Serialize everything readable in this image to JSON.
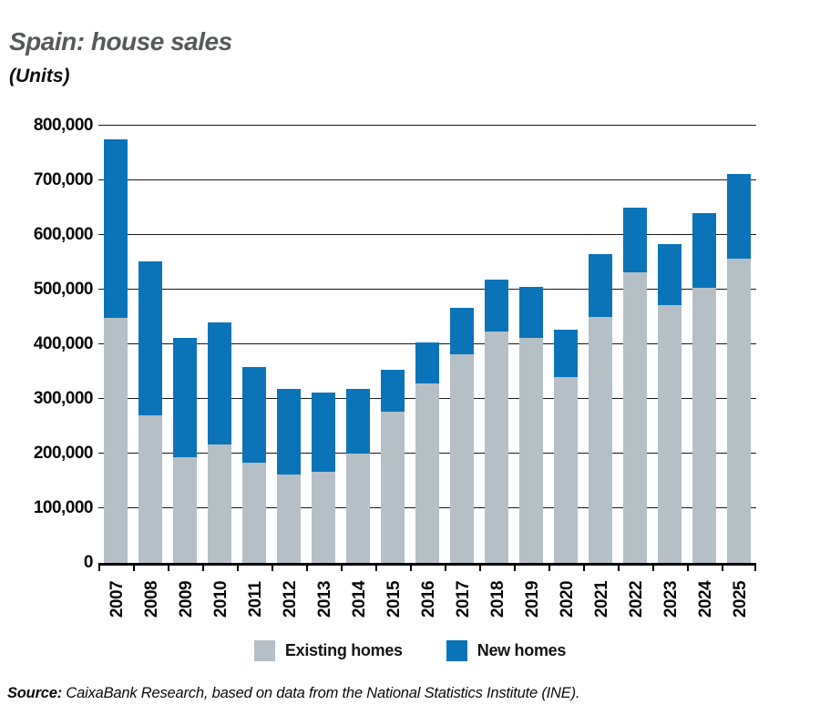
{
  "title": "Spain: house sales",
  "subtitle": "(Units)",
  "legend": {
    "items": [
      {
        "label": "Existing homes",
        "color": "#b5bfc6"
      },
      {
        "label": "New homes",
        "color": "#0b74b8"
      }
    ]
  },
  "source": {
    "label": "Source:",
    "text": " CaixaBank Research, based on data from the National Statistics Institute (INE)."
  },
  "colors": {
    "existing_homes": "#b5bfc6",
    "new_homes": "#0b74b8",
    "title_gray": "#58595b",
    "axis_black": "#000000"
  },
  "chart_data": {
    "type": "bar",
    "stacked": true,
    "title": "Spain: house sales",
    "subtitle": "(Units)",
    "xlabel": "",
    "ylabel": "Units",
    "ylim": [
      0,
      800000
    ],
    "y_tick_step": 100000,
    "grid": true,
    "legend_position": "bottom",
    "categories": [
      "2007",
      "2008",
      "2009",
      "2010",
      "2011",
      "2012",
      "2013",
      "2014",
      "2015",
      "2016",
      "2017",
      "2018",
      "2019",
      "2020",
      "2021",
      "2022",
      "2023",
      "2024",
      "2025"
    ],
    "series": [
      {
        "name": "Existing homes",
        "color": "#b5bfc6",
        "values": [
          448000,
          270000,
          193000,
          216000,
          184000,
          161000,
          167000,
          200000,
          276000,
          328000,
          382000,
          423000,
          411000,
          340000,
          450000,
          532000,
          471000,
          504000,
          556000
        ]
      },
      {
        "name": "New homes",
        "color": "#0b74b8",
        "values": [
          327000,
          282000,
          219000,
          224000,
          174000,
          158000,
          145000,
          118000,
          78000,
          76000,
          84000,
          95000,
          94000,
          86000,
          115000,
          118000,
          112000,
          136000,
          156000
        ]
      }
    ]
  }
}
